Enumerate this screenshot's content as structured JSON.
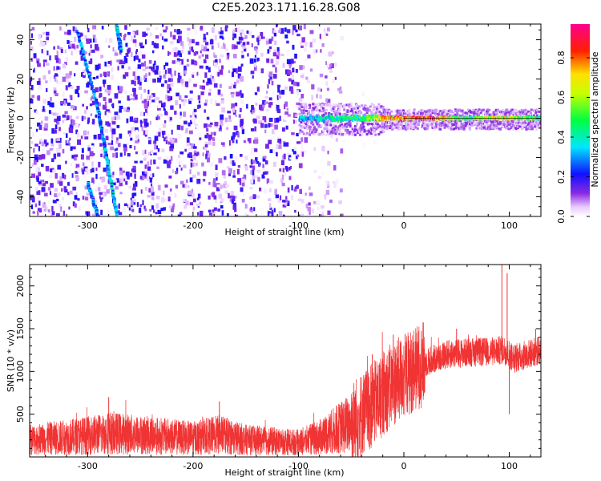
{
  "figure": {
    "title": "C2E5.2023.171.16.28.G08"
  },
  "chart_data": [
    {
      "type": "heatmap",
      "xlabel": "Height of straight line (km)",
      "ylabel": "Frequency (Hz)",
      "xlim": [
        -355,
        130
      ],
      "ylim": [
        -50,
        48
      ],
      "xticks": [
        -300,
        -200,
        -100,
        0,
        100
      ],
      "yticks": [
        -40,
        -20,
        0,
        20,
        40
      ],
      "colorbar": {
        "label": "Normalized spectral amplitude",
        "range": [
          0.0,
          0.97
        ],
        "ticks": [
          0.0,
          0.2,
          0.4,
          0.6,
          0.8
        ],
        "colormap": "rainbow (white-violet-blue-cyan-green-yellow-red-magenta)"
      },
      "features": [
        {
          "type": "tone_line",
          "freq_hz": 0,
          "x_from": -100,
          "x_to": 130,
          "amplitude_profile": [
            [
              -100,
              0.35
            ],
            [
              -40,
              0.5
            ],
            [
              -20,
              0.75
            ],
            [
              0,
              0.85
            ],
            [
              20,
              0.95
            ],
            [
              60,
              0.5
            ],
            [
              90,
              0.75
            ],
            [
              130,
              0.5
            ]
          ]
        },
        {
          "type": "streak",
          "from": [
            -310,
            45
          ],
          "to": [
            -290,
            5
          ],
          "amplitude": 0.3
        },
        {
          "type": "streak",
          "from": [
            -290,
            5
          ],
          "to": [
            -282,
            -20
          ],
          "amplitude": 0.3
        },
        {
          "type": "streak",
          "from": [
            -282,
            -20
          ],
          "to": [
            -272,
            -50
          ],
          "amplitude": 0.35
        },
        {
          "type": "streak",
          "from": [
            -300,
            -32
          ],
          "to": [
            -290,
            -50
          ],
          "amplitude": 0.3
        },
        {
          "type": "streak",
          "from": [
            -273,
            48
          ],
          "to": [
            -268,
            35
          ],
          "amplitude": 0.35
        },
        {
          "type": "noise_floor",
          "x_from": -355,
          "x_to": -60,
          "amplitude": 0.2
        }
      ]
    },
    {
      "type": "line",
      "xlabel": "Height of straight line (km)",
      "ylabel": "SNR (10 * v/v)",
      "xlim": [
        -355,
        130
      ],
      "ylim": [
        0,
        2250
      ],
      "xticks": [
        -300,
        -200,
        -100,
        0,
        100
      ],
      "yticks": [
        500,
        1000,
        1500,
        2000
      ],
      "color": "#f03333",
      "series": [
        {
          "envelope": [
            [
              -355,
              200
            ],
            [
              -300,
              250
            ],
            [
              -280,
              280
            ],
            [
              -200,
              220
            ],
            [
              -175,
              260
            ],
            [
              -150,
              200
            ],
            [
              -100,
              170
            ],
            [
              -80,
              230
            ],
            [
              -50,
              400
            ],
            [
              -30,
              600
            ],
            [
              -15,
              800
            ],
            [
              0,
              950
            ],
            [
              20,
              1100
            ],
            [
              40,
              1200
            ],
            [
              60,
              1220
            ],
            [
              80,
              1230
            ],
            [
              95,
              1250
            ],
            [
              105,
              1150
            ],
            [
              130,
              1250
            ]
          ],
          "spikes": [
            [
              -280,
              700
            ],
            [
              -175,
              650
            ],
            [
              -30,
              1200
            ],
            [
              -10,
              1430
            ],
            [
              12,
              1350
            ],
            [
              50,
              1500
            ],
            [
              93,
              2250
            ],
            [
              98,
              2150
            ],
            [
              100,
              500
            ],
            [
              125,
              1500
            ]
          ]
        }
      ]
    }
  ]
}
